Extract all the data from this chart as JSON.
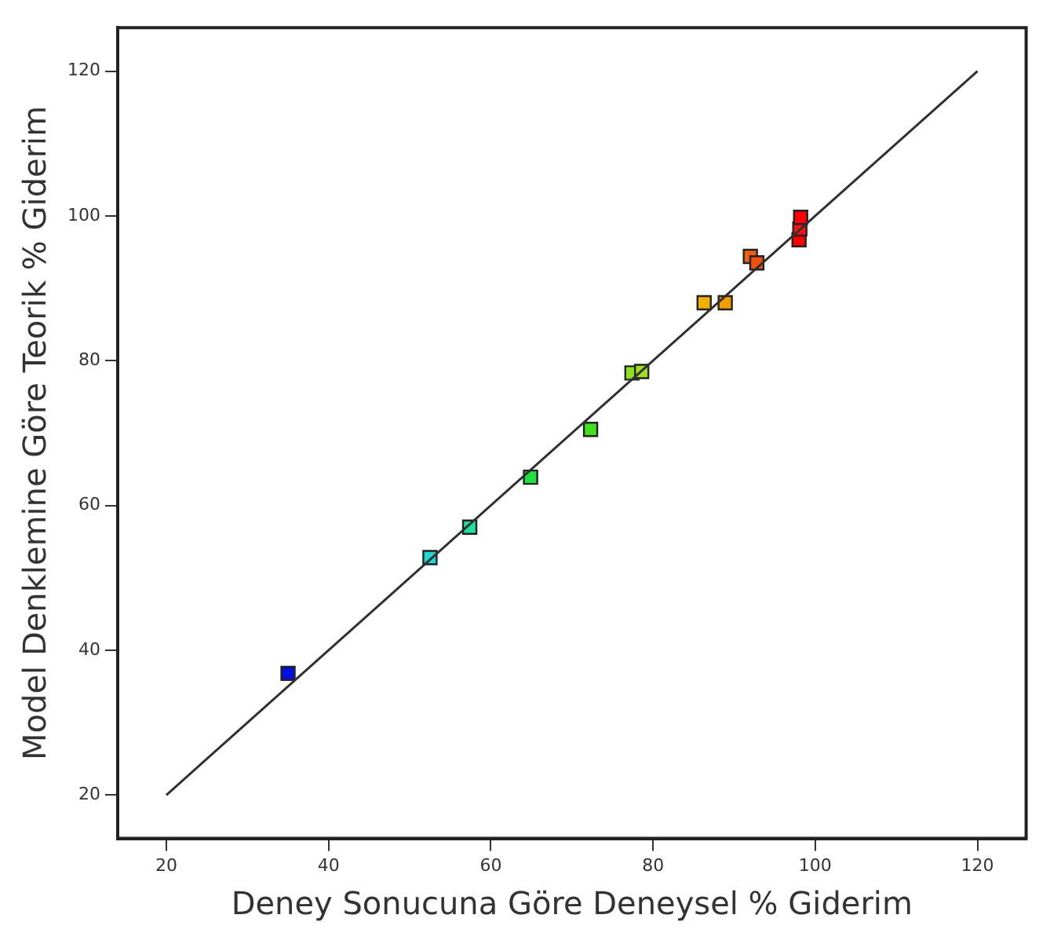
{
  "chart_data": {
    "type": "scatter",
    "xlabel": "Deney Sonucuna Göre Deneysel % Giderim",
    "ylabel": "Model Denklemine Göre Teorik % Giderim",
    "xlim": [
      14,
      126
    ],
    "ylim": [
      14,
      126
    ],
    "xticks": [
      20,
      40,
      60,
      80,
      100,
      120
    ],
    "yticks": [
      20,
      40,
      60,
      80,
      100,
      120
    ],
    "grid": false,
    "legend": false,
    "marker": "square",
    "series": [
      {
        "type": "line",
        "color": "#303030",
        "x": [
          20,
          120
        ],
        "values": [
          20,
          120
        ],
        "marker": "none",
        "line_style": "solid"
      },
      {
        "x": [
          35.0,
          52.5,
          57.4,
          64.9,
          72.3,
          77.4,
          78.6,
          86.3,
          88.9,
          92.0,
          92.8,
          98.0,
          98.1,
          98.2
        ],
        "values": [
          36.8,
          52.8,
          57.0,
          63.9,
          70.5,
          78.3,
          78.5,
          88.0,
          88.0,
          94.4,
          93.5,
          96.7,
          98.2,
          99.8
        ],
        "colors": [
          "#0010e0",
          "#20d8d0",
          "#20e0a0",
          "#20e040",
          "#40e020",
          "#90e020",
          "#a0e020",
          "#f0b000",
          "#f0a000",
          "#f06010",
          "#f05010",
          "#ff0000",
          "#ff1010",
          "#ff0000"
        ]
      }
    ]
  }
}
